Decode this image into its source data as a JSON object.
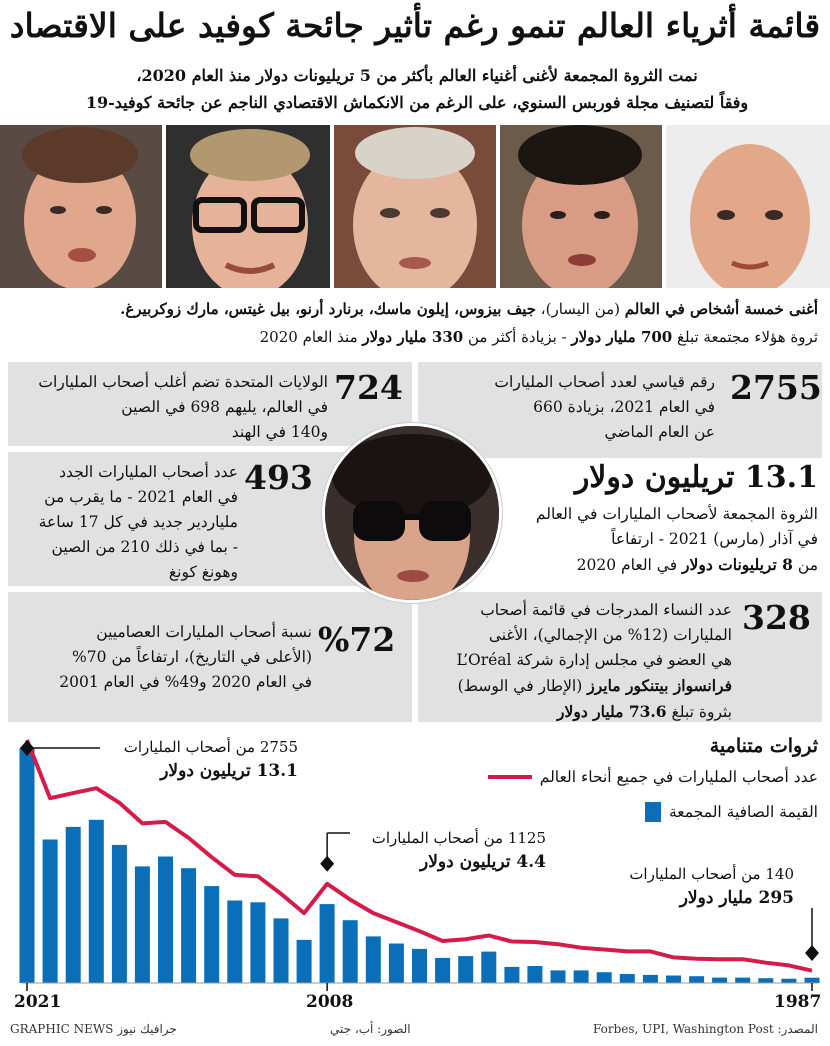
{
  "title": "قائمة أثرياء العالم تنمو رغم تأثير جائحة كوفيد على الاقتصاد",
  "subtitle_line1": "نمت الثروة المجمعة لأغنى أغنياء العالم بأكثر من 5 تريليونات دولار منذ العام 2020،",
  "subtitle_line2": "وفقاً لتصنيف مجلة فوربس السنوي، على الرغم من الانكماش الاقتصادي الناجم عن جائحة كوفيد-19",
  "caption": {
    "lead": "أغنى خمسة أشخاص في العالم",
    "paren": " (من اليسار)، ",
    "names": "جيف بيزوس، إيلون ماسك، برنارد أرنو، بيل غيتس، مارك زوكربيرغ.",
    "line2_a": "ثروة هؤلاء مجتمعة تبلغ ",
    "line2_b": "700 مليار دولار",
    "line2_c": " - بزيادة أكثر من ",
    "line2_d": "330 مليار دولار",
    "line2_e": " منذ العام 2020"
  },
  "facts": {
    "f1": {
      "value": "2755",
      "l1": "رقم قياسي لعدد أصحاب المليارات",
      "l2": "في العام 2021، بزيادة 660",
      "l3": "عن العام الماضي"
    },
    "f2": {
      "value": "724",
      "l1": "الولايات المتحدة تضم أغلب أصحاب المليارات",
      "l2": "في العالم، يليهم 698 في الصين",
      "l3": "و140 في الهند"
    },
    "f3": {
      "value": "13.1",
      "unit": "تريليون دولار",
      "l1": "الثروة المجمعة لأصحاب المليارات في العالم",
      "l2": "في آذار (مارس) 2021 - ارتفاعاً",
      "l3a": "من ",
      "l3b": "8 تريليونات دولار",
      "l3c": " في العام 2020"
    },
    "f4": {
      "value": "493",
      "l1": "عدد أصحاب المليارات الجدد",
      "l2": "في العام 2021 - ما يقرب من",
      "l3": "ملياردير جديد في كل 17 ساعة",
      "l4": "- بما في ذلك 210 من الصين",
      "l5": "وهونغ كونغ"
    },
    "f5": {
      "value": "328",
      "l1": "عدد النساء المدرجات في قائمة أصحاب",
      "l2": "المليارات (12% من الإجمالي)، الأغنى",
      "l3": "هي العضو في مجلس إدارة شركة L’Oréal",
      "l4a": "فرانسواز بيتنكور مايرز",
      "l4b": " (الإطار في الوسط)",
      "l5a": "بثروة تبلغ ",
      "l5b": "73.6 مليار دولار"
    },
    "f6": {
      "value": "%72",
      "l1": "نسبة أصحاب المليارات العصاميين",
      "l2": "(الأعلى في التاريخ)، ارتفاعاً من 70%",
      "l3": "في العام 2020 و49% في العام 2001"
    }
  },
  "legend": {
    "title": "ثروات متنامية",
    "line_label": "عدد أصحاب المليارات في جميع أنحاء العالم",
    "bar_label": "القيمة الصافية المجمعة"
  },
  "annotations": {
    "a2021_l1": "2755 من أصحاب المليارات",
    "a2021_l2": "13.1 تريليون دولار",
    "a2008_l1": "1125 من أصحاب المليارات",
    "a2008_l2": "4.4 تريليون دولار",
    "a1987_l1": "140 من أصحاب المليارات",
    "a1987_l2": "295 مليار دولار"
  },
  "chart_data": {
    "type": "bar",
    "x": [
      2021,
      2020,
      2019,
      2018,
      2017,
      2016,
      2015,
      2014,
      2013,
      2012,
      2011,
      2010,
      2009,
      2008,
      2007,
      2006,
      2005,
      2004,
      2003,
      2002,
      2001,
      2000,
      1999,
      1998,
      1997,
      1996,
      1995,
      1994,
      1993,
      1992,
      1991,
      1990,
      1989,
      1988,
      1987
    ],
    "xticks": [
      "2021",
      "2008",
      "1987"
    ],
    "series": [
      {
        "name": "القيمة الصافية المجمعة",
        "kind": "bar",
        "unit": "trillion USD",
        "values": [
          13.1,
          8.0,
          8.7,
          9.1,
          7.7,
          6.5,
          7.05,
          6.4,
          5.4,
          4.6,
          4.5,
          3.6,
          2.4,
          4.4,
          3.5,
          2.6,
          2.2,
          1.9,
          1.4,
          1.5,
          1.75,
          0.9,
          0.95,
          0.7,
          0.7,
          0.6,
          0.5,
          0.45,
          0.42,
          0.38,
          0.3,
          0.3,
          0.27,
          0.24,
          0.295
        ]
      },
      {
        "name": "عدد أصحاب المليارات في جميع أنحاء العالم",
        "kind": "line",
        "values": [
          2755,
          2095,
          2153,
          2208,
          2043,
          1810,
          1826,
          1645,
          1426,
          1226,
          1210,
          1011,
          793,
          1125,
          946,
          793,
          691,
          587,
          476,
          497,
          538,
          470,
          465,
          440,
          400,
          380,
          358,
          358,
          290,
          275,
          270,
          270,
          230,
          200,
          140
        ]
      }
    ]
  },
  "footer": {
    "source": "المصدر: Forbes, UPI, Washington Post",
    "photos": "الصور: أب، جتي",
    "brand": "GRAPHIC NEWS جرافيك نيوز"
  }
}
